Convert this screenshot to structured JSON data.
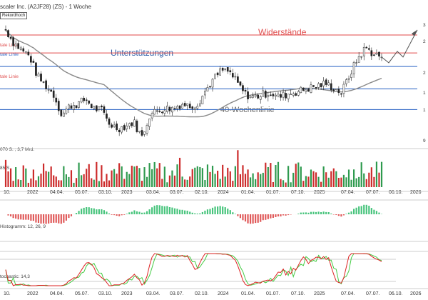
{
  "header": {
    "title": "scaler Inc. (A2JF28) (ZS) - 1 Woche",
    "badge": "Rekordhoch"
  },
  "annotations": {
    "widerstaende": "Widerstände",
    "unterstuetzungen": "Unterstützungen",
    "wochenlinie": "40-Wochenlinie",
    "level_labels": [
      "tale Linie",
      "tale Linie",
      "tale Linie"
    ]
  },
  "colors": {
    "up": "#2e9a4e",
    "down": "#cc2a2a",
    "resistance": "#e24a4a",
    "support": "#3b6fc9",
    "ma": "#8a8a8a",
    "macd_up": "#47c47c",
    "macd_down": "#e05a5a",
    "stoch_k": "#dd2222",
    "stoch_d": "#44cc44"
  },
  "volume": {
    "label1": "070 S. ; 3,7 Mrd.",
    "label2": "85 S."
  },
  "macd": {
    "label": "Histogramm: 12, 26, 9"
  },
  "stoch": {
    "label": "tochastic: 14,3"
  },
  "x_axis": {
    "top": [
      "10.",
      "2022",
      "04.04.",
      "05.07.",
      "03.10.",
      "2023",
      "03.04.",
      "03.07.",
      "02.10.",
      "2024",
      "01.04.",
      "01.07.",
      "07.10.",
      "2025",
      "07.04.",
      "07.07.",
      "06.10.",
      "2026"
    ],
    "bottom": [
      "10.",
      "2022",
      "04.04.",
      "05.07.",
      "03.10.",
      "2023",
      "03.04.",
      "03.07.",
      "02.10.",
      "2024",
      "01.04.",
      "01.07.",
      "07.10.",
      "2025",
      "07.04.",
      "07.07.",
      "06.10.",
      "2026"
    ]
  },
  "right_axis": [
    "3",
    "2",
    "2",
    "1",
    "1",
    "9"
  ],
  "chart_data": {
    "type": "candlestick",
    "weeks": 150,
    "close_trend": [
      [
        "2021-10",
        330
      ],
      [
        "2021-11",
        300
      ],
      [
        "2022-01",
        270
      ],
      [
        "2022-02",
        225
      ],
      [
        "2022-03",
        205
      ],
      [
        "2022-04",
        185
      ],
      [
        "2022-05",
        140
      ],
      [
        "2022-06",
        160
      ],
      [
        "2022-07",
        165
      ],
      [
        "2022-08",
        175
      ],
      [
        "2022-09",
        155
      ],
      [
        "2022-10",
        150
      ],
      [
        "2022-11",
        120
      ],
      [
        "2022-12",
        110
      ],
      [
        "2023-01",
        115
      ],
      [
        "2023-02",
        125
      ],
      [
        "2023-03",
        90
      ],
      [
        "2023-04",
        140
      ],
      [
        "2023-05",
        150
      ],
      [
        "2023-06",
        155
      ],
      [
        "2023-07",
        155
      ],
      [
        "2023-08",
        165
      ],
      [
        "2023-09",
        160
      ],
      [
        "2023-10",
        165
      ],
      [
        "2023-11",
        195
      ],
      [
        "2023-12",
        220
      ],
      [
        "2024-01",
        240
      ],
      [
        "2024-02",
        235
      ],
      [
        "2024-03",
        210
      ],
      [
        "2024-04",
        185
      ],
      [
        "2024-05",
        180
      ],
      [
        "2024-06",
        185
      ],
      [
        "2024-07",
        190
      ],
      [
        "2024-08",
        180
      ],
      [
        "2024-09",
        185
      ],
      [
        "2024-10",
        190
      ],
      [
        "2024-11",
        195
      ],
      [
        "2024-12",
        200
      ],
      [
        "2025-01",
        205
      ],
      [
        "2025-02",
        210
      ],
      [
        "2025-03",
        200
      ],
      [
        "2025-04",
        190
      ],
      [
        "2025-05",
        230
      ],
      [
        "2025-06",
        265
      ],
      [
        "2025-07",
        290
      ],
      [
        "2025-08",
        275
      ],
      [
        "2025-09",
        270
      ]
    ],
    "resistance_levels": [
      318,
      278
    ],
    "support_levels": [
      248,
      198,
      152
    ],
    "ma_period_weeks": 40,
    "projection": "up"
  }
}
